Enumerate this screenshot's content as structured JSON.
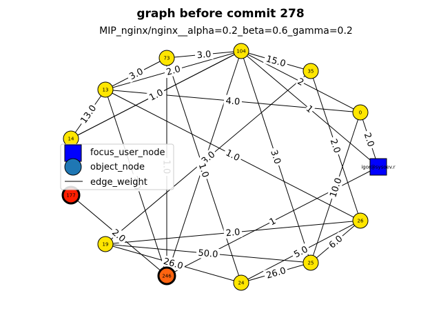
{
  "title": "graph before commit 278",
  "subtitle": "MIP_nginx/nginx__alpha=0.2_beta=0.6_gamma=0.2",
  "legend": {
    "focus": "focus_user_node",
    "object": "object_node",
    "edge": "edge_weight"
  },
  "colors": {
    "object_node": "#FFE600",
    "focus_node": "#0000FF",
    "node_177": "#FF1E00",
    "node_246": "#FF6410",
    "legend_object": "#1F77B4"
  },
  "nodes": [
    {
      "id": "0",
      "label": "0",
      "kind": "object"
    },
    {
      "id": "35",
      "label": "35",
      "kind": "object"
    },
    {
      "id": "104",
      "label": "104",
      "kind": "object"
    },
    {
      "id": "73",
      "label": "73",
      "kind": "object"
    },
    {
      "id": "13",
      "label": "13",
      "kind": "object"
    },
    {
      "id": "14",
      "label": "14",
      "kind": "object"
    },
    {
      "id": "177",
      "label": "177",
      "kind": "highlight"
    },
    {
      "id": "19",
      "label": "19",
      "kind": "object"
    },
    {
      "id": "246",
      "label": "246",
      "kind": "highlight"
    },
    {
      "id": "24",
      "label": "24",
      "kind": "object"
    },
    {
      "id": "25",
      "label": "25",
      "kind": "object"
    },
    {
      "id": "26",
      "label": "26",
      "kind": "object"
    },
    {
      "id": "igor",
      "label": "igor@sysoev.r",
      "kind": "focus"
    }
  ],
  "edges": [
    {
      "source": "104",
      "target": "35",
      "label": "15.0"
    },
    {
      "source": "104",
      "target": "73",
      "label": "3.0"
    },
    {
      "source": "13",
      "target": "73",
      "label": "3.0"
    },
    {
      "source": "14",
      "target": "13",
      "label": "13.0"
    },
    {
      "source": "13",
      "target": "0",
      "label": "4.0"
    },
    {
      "source": "104",
      "target": "13",
      "label": "2.0"
    },
    {
      "source": "104",
      "target": "14",
      "label": "1.0"
    },
    {
      "source": "13",
      "target": "26",
      "label": "1.0"
    },
    {
      "source": "13",
      "target": "246",
      "label": "3.0"
    },
    {
      "source": "0",
      "target": "igor",
      "label": "2.0"
    },
    {
      "source": "104",
      "target": "igor",
      "label": "1"
    },
    {
      "source": "104",
      "target": "246",
      "label": "1.0"
    },
    {
      "source": "104",
      "target": "25",
      "label": "3.0"
    },
    {
      "source": "35",
      "target": "19",
      "label": "3.0"
    },
    {
      "source": "35",
      "target": "26",
      "label": "2.0"
    },
    {
      "source": "73",
      "target": "24",
      "label": "1.0"
    },
    {
      "source": "73",
      "target": "246",
      "label": "1.0"
    },
    {
      "source": "0",
      "target": "25",
      "label": "10.0"
    },
    {
      "source": "104",
      "target": "0",
      "label": "2"
    },
    {
      "source": "igor",
      "target": "246",
      "label": "1"
    },
    {
      "source": "19",
      "target": "26",
      "label": "2.0"
    },
    {
      "source": "19",
      "target": "25",
      "label": "50.0"
    },
    {
      "source": "19",
      "target": "24",
      "label": "26.0"
    },
    {
      "source": "24",
      "target": "25",
      "label": "26.0"
    },
    {
      "source": "25",
      "target": "26",
      "label": "6.0"
    },
    {
      "source": "24",
      "target": "26",
      "label": "5.0"
    },
    {
      "source": "177",
      "target": "246",
      "label": "2.0"
    },
    {
      "source": "14",
      "target": "104",
      "label": ""
    }
  ]
}
